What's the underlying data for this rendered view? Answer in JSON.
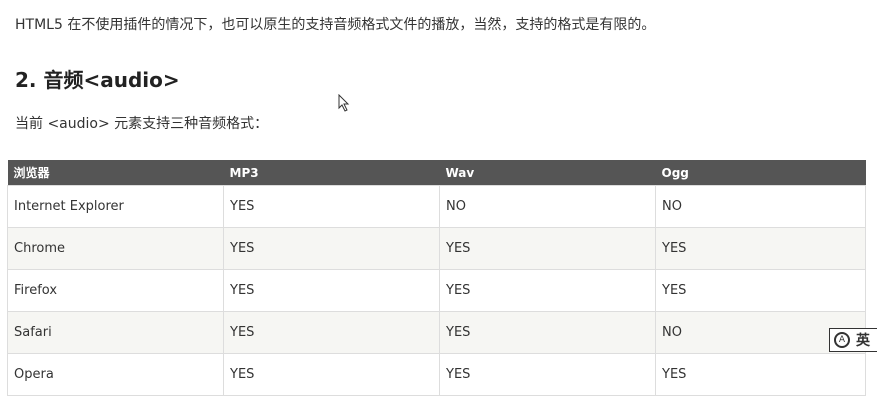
{
  "intro": "HTML5 在不使用插件的情况下，也可以原生的支持音频格式文件的播放，当然，支持的格式是有限的。",
  "heading": "2. 音频<audio>",
  "lead": "当前 <audio> 元素支持三种音频格式：",
  "table": {
    "headers": [
      "浏览器",
      "MP3",
      "Wav",
      "Ogg"
    ],
    "rows": [
      [
        "Internet Explorer",
        "YES",
        "NO",
        "NO"
      ],
      [
        "Chrome",
        "YES",
        "YES",
        "YES"
      ],
      [
        "Firefox",
        "YES",
        "YES",
        "YES"
      ],
      [
        "Safari",
        "YES",
        "YES",
        "NO"
      ],
      [
        "Opera",
        "YES",
        "YES",
        "YES"
      ]
    ]
  },
  "ime": {
    "icon": "ime-icon",
    "label": "英"
  }
}
